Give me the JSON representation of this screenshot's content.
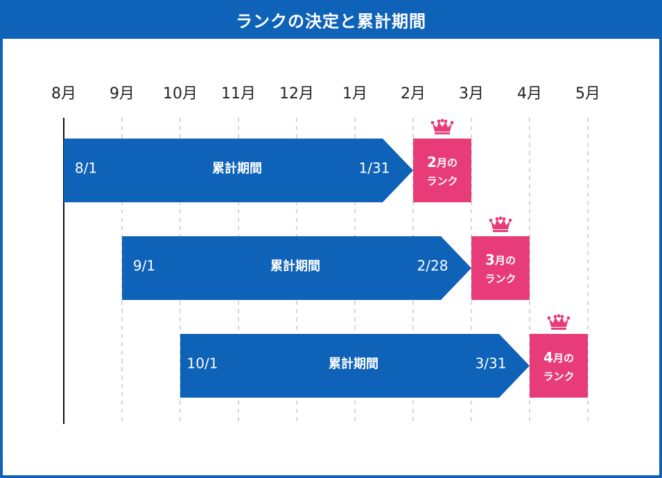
{
  "title": "ランクの決定と累計期間",
  "months": [
    "8月",
    "9月",
    "10月",
    "11月",
    "12月",
    "1月",
    "2月",
    "3月",
    "4月",
    "5月"
  ],
  "colors": {
    "frame": "#0e62b8",
    "bar": "#0e62b8",
    "rank": "#e73c78",
    "grid": "#c8c8c8",
    "axis": "#111111",
    "text": "#222222"
  },
  "periods": [
    {
      "start_label": "8/1",
      "end_label": "1/31",
      "label": "累計期間",
      "start_month": 0,
      "end_month": 6,
      "rank_month_num": "2",
      "rank_month_suffix": "月の",
      "rank_word": "ランク"
    },
    {
      "start_label": "9/1",
      "end_label": "2/28",
      "label": "累計期間",
      "start_month": 1,
      "end_month": 7,
      "rank_month_num": "3",
      "rank_month_suffix": "月の",
      "rank_word": "ランク"
    },
    {
      "start_label": "10/1",
      "end_label": "3/31",
      "label": "累計期間",
      "start_month": 2,
      "end_month": 8,
      "rank_month_num": "4",
      "rank_month_suffix": "月の",
      "rank_word": "ランク"
    }
  ]
}
